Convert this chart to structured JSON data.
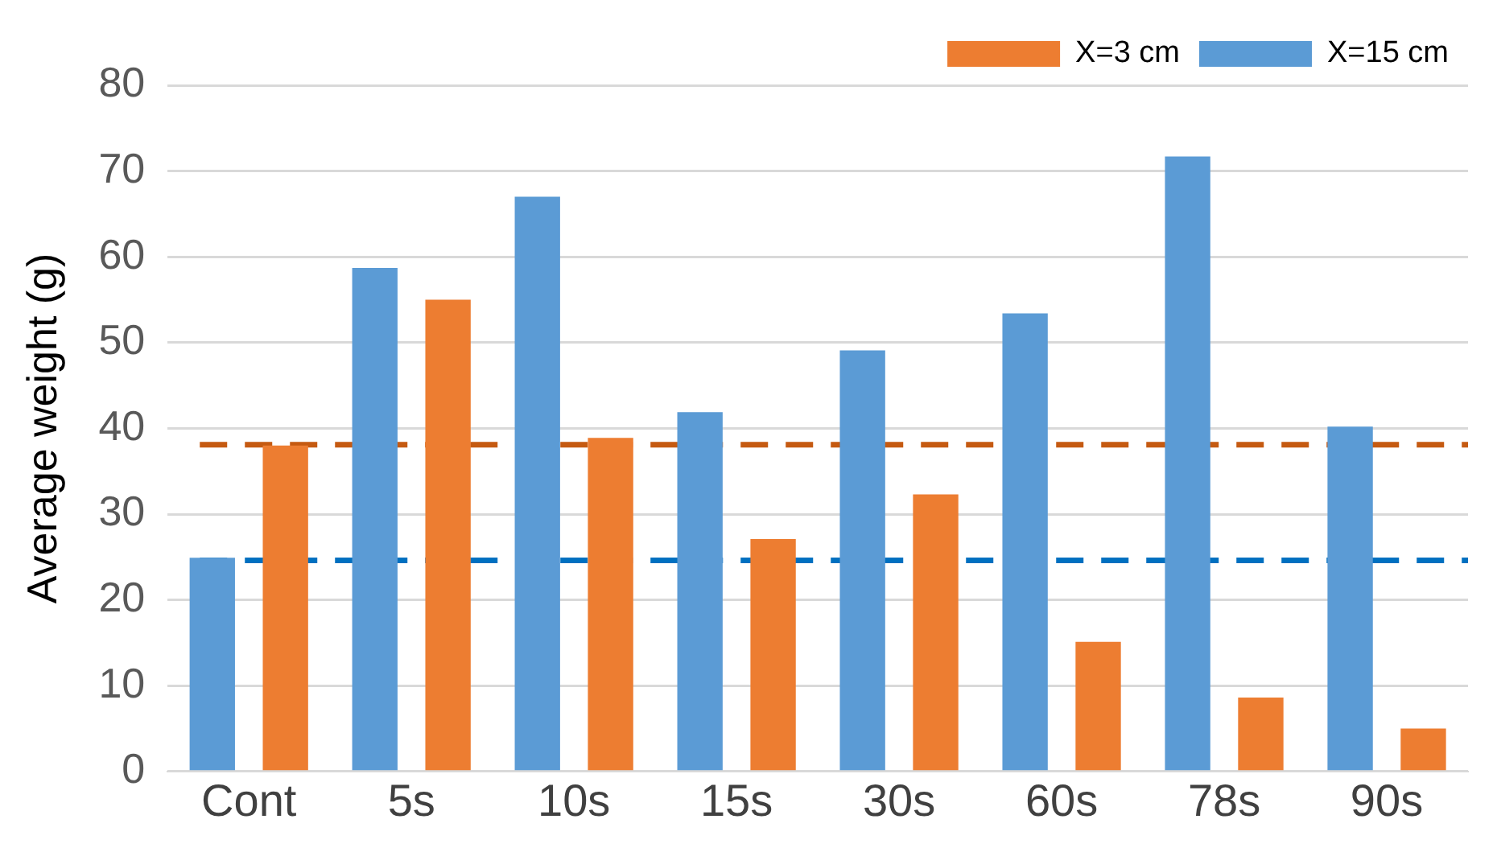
{
  "chart_data": {
    "type": "bar",
    "ylabel": "Average weight (g)",
    "categories": [
      "Cont",
      "5s",
      "10s",
      "15s",
      "30s",
      "60s",
      "78s",
      "90s"
    ],
    "series": [
      {
        "name": "X=15 cm",
        "color": "#5b9bd5",
        "values": [
          24.9,
          58.7,
          67.0,
          41.9,
          49.1,
          53.4,
          71.7,
          40.2
        ]
      },
      {
        "name": "X=3 cm",
        "color": "#ed7d31",
        "values": [
          38.0,
          55.0,
          38.9,
          27.1,
          32.3,
          15.1,
          8.6,
          5.0
        ]
      }
    ],
    "ylim": [
      0,
      80
    ],
    "yticks": [
      0,
      10,
      20,
      30,
      40,
      50,
      60,
      70,
      80
    ],
    "grid": "y",
    "legend": "top right",
    "ref_lines": [
      {
        "axis": "y",
        "value": 38.1,
        "color": "#c55a11",
        "line_style": "dashed"
      },
      {
        "axis": "y",
        "value": 24.6,
        "color": "#0070c0",
        "line_style": "dashed"
      }
    ]
  }
}
